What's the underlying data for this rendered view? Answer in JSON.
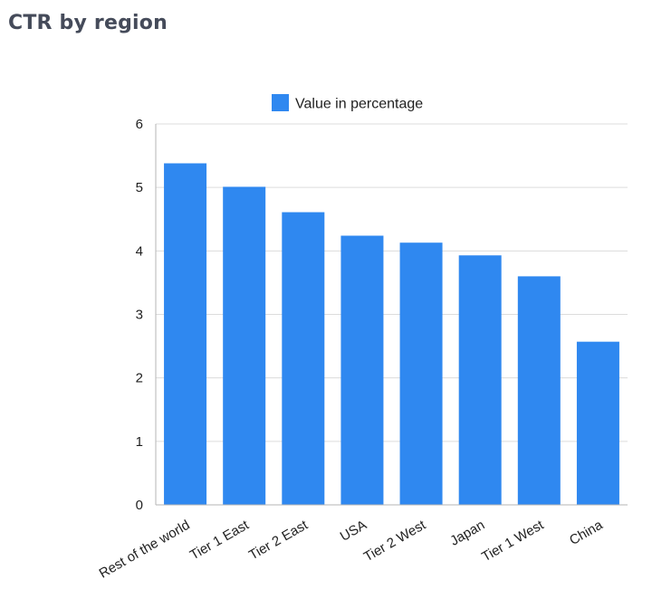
{
  "page": {
    "title": "CTR by region"
  },
  "chart_data": {
    "type": "bar",
    "title": "",
    "xlabel": "",
    "ylabel": "",
    "categories": [
      "Rest of the world",
      "Tier 1 East",
      "Tier 2 East",
      "USA",
      "Tier 2 West",
      "Japan",
      "Tier 1 West",
      "China"
    ],
    "series": [
      {
        "name": "Value in percentage",
        "values": [
          5.38,
          5.01,
          4.61,
          4.24,
          4.13,
          3.93,
          3.6,
          2.57
        ],
        "color": "#2f88f0"
      }
    ],
    "ylim": [
      0,
      6
    ],
    "yticks": [
      "0",
      "1",
      "2",
      "3",
      "4",
      "5",
      "6"
    ],
    "grid": true,
    "legend_position": "top",
    "colors": {
      "gridline": "#dcdcdc",
      "axis": "#b5b5b5"
    }
  }
}
